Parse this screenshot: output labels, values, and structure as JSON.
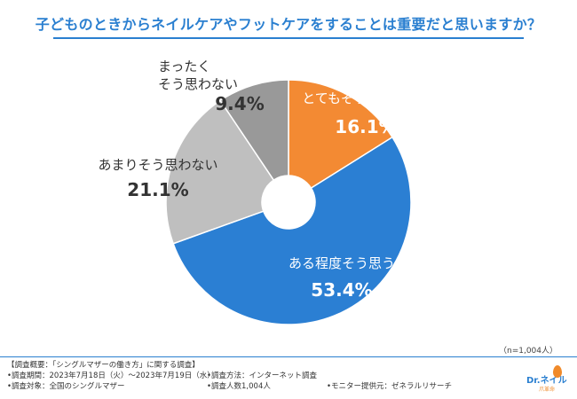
{
  "title": "子どものときからネイルケアやフットケアをすることは重要だと思いますか？",
  "sample_note": "（n=1,004人）",
  "footer": {
    "overview": "【調査概要：「シングルマザーの働き方」に関する調査】",
    "period": "•調査期間：2023年7月18日（火）〜2023年7月19日（水）",
    "method": "•調査方法：インターネット調査",
    "target": "•調査対象：全国のシングルマザー",
    "count": "•調査人数1,004人",
    "provider": "•モニター提供元：ゼネラルリサーチ"
  },
  "logo": {
    "text": "Dr.ネイル",
    "sub": "爪革命",
    "icon": "drop-icon"
  },
  "chart_data": {
    "type": "pie",
    "title": "子どものときからネイルケアやフットケアをすることは重要だと思いますか？",
    "donut": true,
    "start": "12 o'clock, clockwise",
    "slices": [
      {
        "label": "とてもそう思う",
        "value": 16.1,
        "display": "16.1%",
        "color": "#f38a33",
        "text_color": "#ffffff"
      },
      {
        "label": "ある程度そう思う",
        "value": 53.4,
        "display": "53.4%",
        "color": "#2b7fd3",
        "text_color": "#ffffff"
      },
      {
        "label": "あまりそう思わない",
        "value": 21.1,
        "display": "21.1%",
        "color": "#bfbfbf",
        "text_color": "#333333"
      },
      {
        "label": "まったく\nそう思わない",
        "value": 9.4,
        "display": "9.4%",
        "color": "#999999",
        "text_color": "#333333"
      }
    ]
  }
}
